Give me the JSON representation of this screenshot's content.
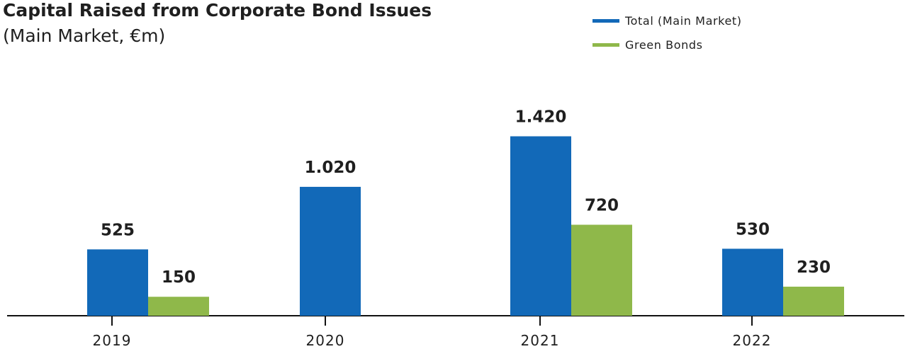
{
  "chart_data": {
    "type": "bar",
    "title": "Capital Raised from Corporate Bond Issues",
    "subtitle": "(Main Market, €m)",
    "categories": [
      "2019",
      "2020",
      "2021",
      "2022"
    ],
    "series": [
      {
        "name": "Total (Main Market)",
        "color": "#1269b8",
        "values": [
          525,
          1020,
          1420,
          530
        ],
        "labels": [
          "525",
          "1.020",
          "1.420",
          "530"
        ]
      },
      {
        "name": "Green Bonds",
        "color": "#8fb84a",
        "values": [
          150,
          null,
          720,
          230
        ],
        "labels": [
          "150",
          "",
          "720",
          "230"
        ]
      }
    ],
    "xlabel": "",
    "ylabel": "",
    "grid": false,
    "legend_position": "top-right"
  }
}
